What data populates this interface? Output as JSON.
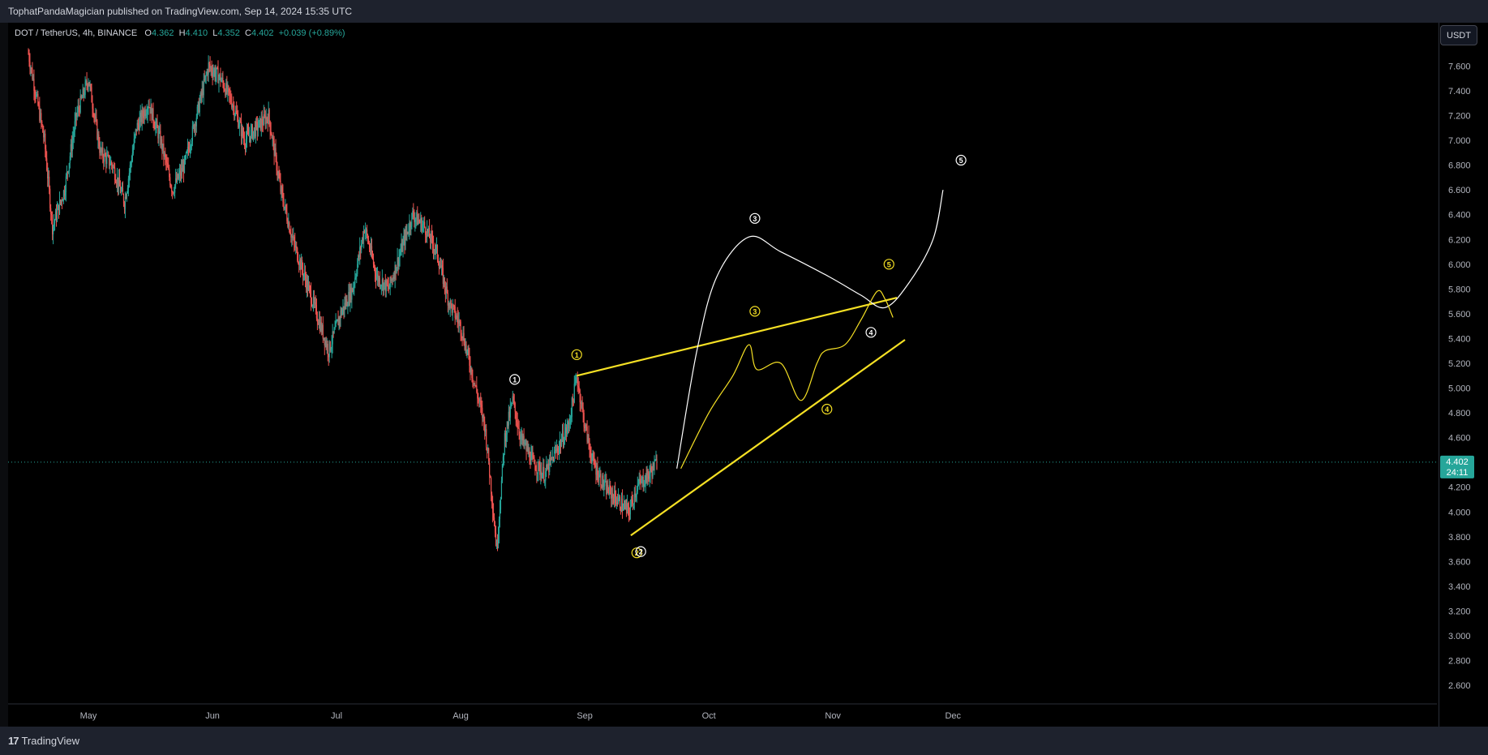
{
  "header": {
    "publisher_text": "TophatPandaMagician published on TradingView.com, Sep 14, 2024 15:35 UTC"
  },
  "legend": {
    "symbol": "DOT / TetherUS, 4h, BINANCE",
    "open_label": "O",
    "open": "4.362",
    "high_label": "H",
    "high": "4.410",
    "low_label": "L",
    "low": "4.352",
    "close_label": "C",
    "close": "4.402",
    "change": "+0.039 (+0.89%)"
  },
  "currency_button": "USDT",
  "last_price": {
    "value": "4.402",
    "countdown": "24:11"
  },
  "footer": {
    "brand": "TradingView"
  },
  "colors": {
    "up": "#26a69a",
    "down": "#ef5350",
    "yellow": "#f5e024",
    "white": "#ffffff",
    "price_line": "#26a69a",
    "last_price_bg": "#26a69a"
  },
  "chart_data": {
    "type": "candlestick",
    "symbol": "DOT / TetherUS",
    "timeframe": "4h",
    "exchange": "BINANCE",
    "ylim": [
      2.45,
      7.95
    ],
    "y_ticks": [
      "7.600",
      "7.400",
      "7.200",
      "7.000",
      "6.800",
      "6.600",
      "6.400",
      "6.200",
      "6.000",
      "5.800",
      "5.600",
      "5.400",
      "5.200",
      "5.000",
      "4.800",
      "4.600",
      "4.400",
      "4.200",
      "4.000",
      "3.800",
      "3.600",
      "3.400",
      "3.200",
      "3.000",
      "2.800",
      "2.600"
    ],
    "x_ticks": [
      "May",
      "Jun",
      "Jul",
      "Aug",
      "Sep",
      "Oct",
      "Nov",
      "Dec"
    ],
    "price_path": [
      [
        0,
        7.7
      ],
      [
        4,
        7.0
      ],
      [
        6,
        6.3
      ],
      [
        9,
        6.6
      ],
      [
        12,
        7.2
      ],
      [
        15,
        7.5
      ],
      [
        18,
        6.9
      ],
      [
        21,
        6.8
      ],
      [
        24,
        6.5
      ],
      [
        27,
        7.1
      ],
      [
        30,
        7.3
      ],
      [
        33,
        7.0
      ],
      [
        36,
        6.6
      ],
      [
        39,
        6.8
      ],
      [
        42,
        7.2
      ],
      [
        45,
        7.6
      ],
      [
        48,
        7.5
      ],
      [
        51,
        7.3
      ],
      [
        54,
        7.0
      ],
      [
        57,
        7.1
      ],
      [
        60,
        7.2
      ],
      [
        63,
        6.6
      ],
      [
        66,
        6.2
      ],
      [
        69,
        5.9
      ],
      [
        72,
        5.6
      ],
      [
        75,
        5.3
      ],
      [
        78,
        5.6
      ],
      [
        81,
        5.8
      ],
      [
        84,
        6.3
      ],
      [
        87,
        5.9
      ],
      [
        90,
        5.8
      ],
      [
        93,
        6.1
      ],
      [
        96,
        6.4
      ],
      [
        99,
        6.3
      ],
      [
        102,
        6.1
      ],
      [
        105,
        5.7
      ],
      [
        108,
        5.5
      ],
      [
        111,
        5.1
      ],
      [
        114,
        4.7
      ],
      [
        115,
        4.4
      ],
      [
        117,
        3.7
      ],
      [
        119,
        4.6
      ],
      [
        121,
        4.9
      ],
      [
        123,
        4.6
      ],
      [
        126,
        4.4
      ],
      [
        129,
        4.3
      ],
      [
        132,
        4.5
      ],
      [
        135,
        4.7
      ],
      [
        137,
        5.1
      ],
      [
        139,
        4.7
      ],
      [
        141,
        4.4
      ],
      [
        144,
        4.2
      ],
      [
        147,
        4.1
      ],
      [
        150,
        4.0
      ],
      [
        152,
        4.2
      ],
      [
        155,
        4.3
      ],
      [
        157,
        4.4
      ]
    ],
    "annotations": {
      "white_labels": [
        {
          "text": "1",
          "x": 121.5,
          "y": 5.07
        },
        {
          "text": "2",
          "x": 153,
          "y": 3.68
        },
        {
          "text": "3",
          "x": 181.5,
          "y": 6.37
        },
        {
          "text": "4",
          "x": 210.5,
          "y": 5.45
        },
        {
          "text": "5",
          "x": 233,
          "y": 6.84
        }
      ],
      "yellow_labels": [
        {
          "text": "1",
          "x": 137,
          "y": 5.27
        },
        {
          "text": "2",
          "x": 152,
          "y": 3.67
        },
        {
          "text": "3",
          "x": 181.5,
          "y": 5.62
        },
        {
          "text": "4",
          "x": 199.5,
          "y": 4.83
        },
        {
          "text": "5",
          "x": 215,
          "y": 6.0
        }
      ],
      "upper_trendline": [
        [
          137,
          5.1
        ],
        [
          217,
          5.73
        ]
      ],
      "lower_trendline": [
        [
          150.5,
          3.81
        ],
        [
          219,
          5.39
        ]
      ],
      "white_projection": [
        [
          162,
          4.35
        ],
        [
          167,
          5.3
        ],
        [
          172,
          5.9
        ],
        [
          180,
          6.22
        ],
        [
          188,
          6.1
        ],
        [
          200,
          5.9
        ],
        [
          208,
          5.75
        ],
        [
          214,
          5.65
        ],
        [
          220,
          5.85
        ],
        [
          226,
          6.2
        ],
        [
          228.5,
          6.6
        ]
      ],
      "yellow_projection": [
        [
          163,
          4.35
        ],
        [
          170,
          4.8
        ],
        [
          176,
          5.1
        ],
        [
          180,
          5.35
        ],
        [
          182,
          5.15
        ],
        [
          188,
          5.2
        ],
        [
          193,
          4.9
        ],
        [
          197,
          5.2
        ],
        [
          199,
          5.3
        ],
        [
          204,
          5.35
        ],
        [
          208,
          5.55
        ],
        [
          212,
          5.78
        ],
        [
          214,
          5.72
        ],
        [
          216,
          5.57
        ]
      ]
    },
    "last_price": 4.402,
    "x_index_range": [
      0,
      235
    ]
  }
}
